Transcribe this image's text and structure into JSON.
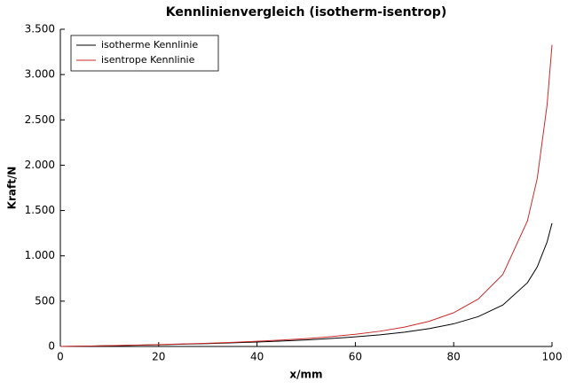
{
  "chart_data": {
    "type": "line",
    "title": "Kennlinienvergleich (isotherm-isentrop)",
    "x_label": "x/mm",
    "y_label": "Kraft/N",
    "x": [
      0,
      5,
      10,
      15,
      20,
      25,
      30,
      35,
      40,
      45,
      50,
      55,
      60,
      65,
      70,
      75,
      80,
      85,
      90,
      95,
      97,
      99,
      100
    ],
    "series": [
      {
        "name": "isotherme Kennlinie",
        "color": "#000000",
        "values": [
          0,
          4.0,
          8.5,
          13.4,
          18.9,
          25.1,
          32.1,
          40.0,
          49.2,
          59.9,
          72.5,
          87.6,
          106.0,
          128.8,
          158.0,
          196.6,
          250.1,
          329.1,
          457.6,
          703.2,
          878.1,
          1153.3,
          1360.1
        ]
      },
      {
        "name": "isentrope Kennlinie",
        "color": "#cc2a2a",
        "values": [
          0,
          4.2,
          9.0,
          14.4,
          20.5,
          27.6,
          35.9,
          45.5,
          56.9,
          70.6,
          87.2,
          107.9,
          134.1,
          168.1,
          213.8,
          277.7,
          372.2,
          523.1,
          794.1,
          1385.2,
          1855.5,
          2667.3,
          3328.6
        ]
      }
    ],
    "xlim": [
      0,
      100
    ],
    "xticks": [
      0,
      20,
      40,
      60,
      80,
      100
    ],
    "ylim": [
      0,
      3500
    ],
    "yticks": [
      0,
      500,
      {
        "value": 1000,
        "label": "1.000"
      },
      {
        "value": 1500,
        "label": "1.500"
      },
      {
        "value": 2000,
        "label": "2.000"
      },
      {
        "value": 2500,
        "label": "2.500"
      },
      {
        "value": 3000,
        "label": "3.000"
      },
      {
        "value": 3500,
        "label": "3.500"
      }
    ],
    "legend": "upper-left",
    "grid": false
  }
}
